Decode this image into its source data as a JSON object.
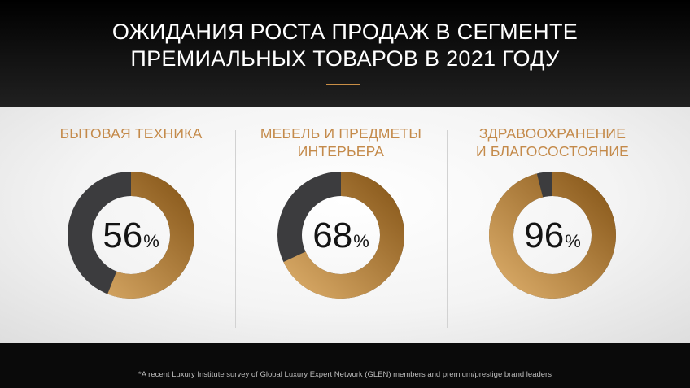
{
  "header": {
    "title_line1": "ОЖИДАНИЯ РОСТА ПРОДАЖ В СЕГМЕНТЕ",
    "title_line2": "ПРЕМИАЛЬНЫХ ТОВАРОВ В 2021 ГОДУ"
  },
  "colors": {
    "accent": "#c98e46",
    "label": "#c48a4a",
    "donut_remainder": "#3c3c3e",
    "donut_gold_light": "#d8a966",
    "donut_gold_dark": "#8a5a1c"
  },
  "chart_data": [
    {
      "type": "pie",
      "title_lines": [
        "БЫТОВАЯ ТЕХНИКА"
      ],
      "value": 56,
      "value_text": "56",
      "unit": "%"
    },
    {
      "type": "pie",
      "title_lines": [
        "МЕБЕЛЬ И ПРЕДМЕТЫ",
        "ИНТЕРЬЕРА"
      ],
      "value": 68,
      "value_text": "68",
      "unit": "%"
    },
    {
      "type": "pie",
      "title_lines": [
        "ЗДРАВООХРАНЕНИЕ",
        "И БЛАГОСОСТОЯНИЕ"
      ],
      "value": 96,
      "value_text": "96",
      "unit": "%"
    }
  ],
  "footer": {
    "note": "*A recent Luxury Institute survey of Global Luxury Expert Network (GLEN) members and premium/prestige brand leaders"
  }
}
